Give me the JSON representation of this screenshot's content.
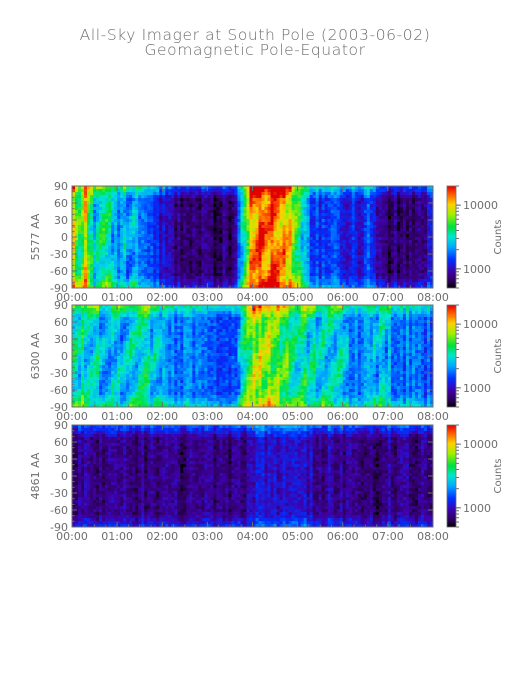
{
  "title": "All-Sky Imager at South Pole (2003-06-02)",
  "subtitle": "Geomagnetic Pole-Equator",
  "chart_data": [
    {
      "type": "heatmap",
      "ylabel": "5577 AA",
      "colorbar_label": "Counts",
      "colorbar_ticks": [
        "10000",
        "1000"
      ],
      "colorbar_range": [
        500,
        20000
      ],
      "colorbar_scale": "log",
      "x_ticks": [
        "00:00",
        "01:00",
        "02:00",
        "03:00",
        "04:00",
        "05:00",
        "06:00",
        "07:00",
        "08:00"
      ],
      "y_ticks": [
        "90",
        "60",
        "30",
        "0",
        "-30",
        "-60",
        "-90"
      ],
      "x_range_hours": [
        0,
        8
      ],
      "ylim": [
        -90,
        90
      ],
      "intensity_profile_hours": [
        0,
        0.15,
        0.3,
        0.5,
        0.7,
        1,
        1.3,
        1.6,
        1.9,
        2.3,
        2.8,
        3.3,
        3.6,
        3.8,
        4.0,
        4.2,
        4.5,
        4.8,
        5.0,
        5.2,
        5.4,
        5.6,
        5.8,
        6.0,
        6.2,
        6.4,
        6.6,
        6.8,
        7.0,
        7.2,
        7.5,
        7.8,
        8.0
      ],
      "intensity_profile": [
        0.9,
        0.6,
        0.75,
        0.45,
        0.6,
        0.35,
        0.45,
        0.3,
        0.22,
        0.1,
        0.08,
        0.08,
        0.12,
        0.5,
        0.9,
        0.95,
        0.9,
        0.85,
        0.6,
        0.35,
        0.3,
        0.25,
        0.3,
        0.2,
        0.25,
        0.2,
        0.3,
        0.15,
        0.1,
        0.1,
        0.1,
        0.15,
        0.25
      ]
    },
    {
      "type": "heatmap",
      "ylabel": "6300 AA",
      "colorbar_label": "Counts",
      "colorbar_ticks": [
        "10000",
        "1000"
      ],
      "colorbar_range": [
        500,
        20000
      ],
      "colorbar_scale": "log",
      "x_ticks": [
        "00:00",
        "01:00",
        "02:00",
        "03:00",
        "04:00",
        "05:00",
        "06:00",
        "07:00",
        "08:00"
      ],
      "y_ticks": [
        "90",
        "60",
        "30",
        "0",
        "-30",
        "-60",
        "-90"
      ],
      "x_range_hours": [
        0,
        8
      ],
      "ylim": [
        -90,
        90
      ],
      "intensity_profile_hours": [
        0,
        0.3,
        0.6,
        1,
        1.3,
        1.6,
        2,
        2.4,
        2.8,
        3.2,
        3.6,
        3.8,
        4.0,
        4.2,
        4.5,
        4.8,
        5.0,
        5.2,
        5.5,
        5.8,
        6.0,
        6.2,
        6.5,
        6.8,
        7.0,
        7.3,
        7.6,
        8.0
      ],
      "intensity_profile": [
        0.55,
        0.5,
        0.45,
        0.42,
        0.45,
        0.5,
        0.4,
        0.35,
        0.32,
        0.3,
        0.3,
        0.55,
        0.7,
        0.72,
        0.68,
        0.6,
        0.55,
        0.5,
        0.5,
        0.45,
        0.5,
        0.35,
        0.35,
        0.45,
        0.4,
        0.35,
        0.35,
        0.3
      ]
    },
    {
      "type": "heatmap",
      "ylabel": "4861 AA",
      "colorbar_label": "Counts",
      "colorbar_ticks": [
        "10000",
        "1000"
      ],
      "colorbar_range": [
        500,
        20000
      ],
      "colorbar_scale": "log",
      "x_ticks": [
        "00:00",
        "01:00",
        "02:00",
        "03:00",
        "04:00",
        "05:00",
        "06:00",
        "07:00",
        "08:00"
      ],
      "y_ticks": [
        "90",
        "60",
        "30",
        "0",
        "-30",
        "-60",
        "-90"
      ],
      "x_range_hours": [
        0,
        8
      ],
      "ylim": [
        -90,
        90
      ],
      "intensity_profile_hours": [
        0,
        1,
        2,
        3,
        3.8,
        4.0,
        4.5,
        5.0,
        5.5,
        6,
        7,
        8
      ],
      "intensity_profile": [
        0.12,
        0.12,
        0.1,
        0.1,
        0.12,
        0.2,
        0.22,
        0.2,
        0.15,
        0.12,
        0.12,
        0.12
      ]
    }
  ],
  "colors": {
    "axis": "#6e6e6e",
    "text": "#6e6e6e",
    "title": "#6b6b6b"
  }
}
